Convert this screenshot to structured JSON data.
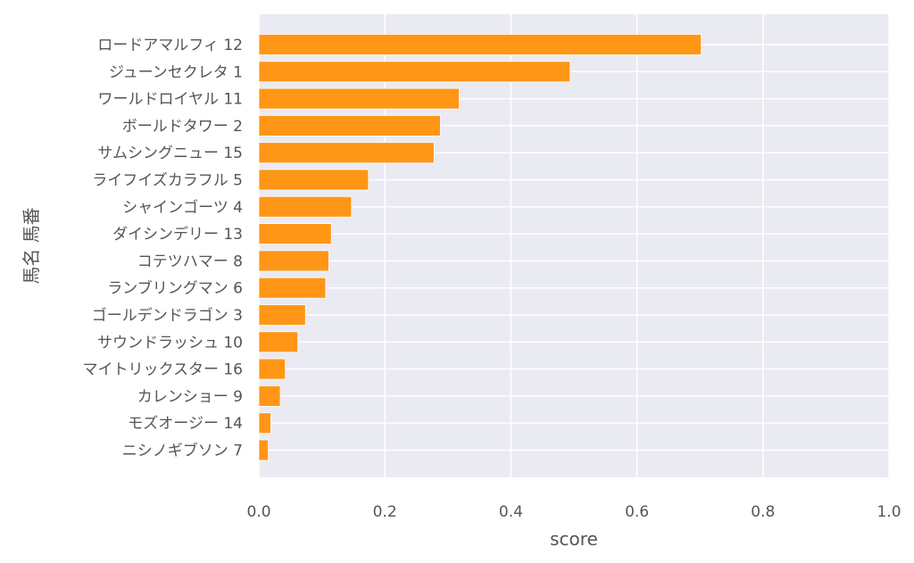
{
  "chart_data": {
    "type": "bar",
    "orientation": "horizontal",
    "title": "",
    "xlabel": "score",
    "ylabel": "馬名 馬番",
    "xlim": [
      0,
      1.0
    ],
    "xticks": [
      "0.0",
      "0.2",
      "0.4",
      "0.6",
      "0.8",
      "1.0"
    ],
    "grid": true,
    "bar_color": "#ff9616",
    "plot_background": "#eaeaf2",
    "categories": [
      "ロードアマルフィ 12",
      "ジューンセクレタ 1",
      "ワールドロイヤル 11",
      "ボールドタワー 2",
      "サムシングニュー 15",
      "ライフイズカラフル 5",
      "シャインゴーツ 4",
      "ダイシンデリー 13",
      "コテツハマー 8",
      "ランブリングマン 6",
      "ゴールデンドラゴン 3",
      "サウンドラッシュ 10",
      "マイトリックスター 16",
      "カレンショー 9",
      "モズオージー 14",
      "ニシノギブソン 7"
    ],
    "values": [
      0.702,
      0.494,
      0.318,
      0.288,
      0.278,
      0.174,
      0.147,
      0.115,
      0.111,
      0.106,
      0.074,
      0.062,
      0.042,
      0.034,
      0.019,
      0.015
    ]
  }
}
